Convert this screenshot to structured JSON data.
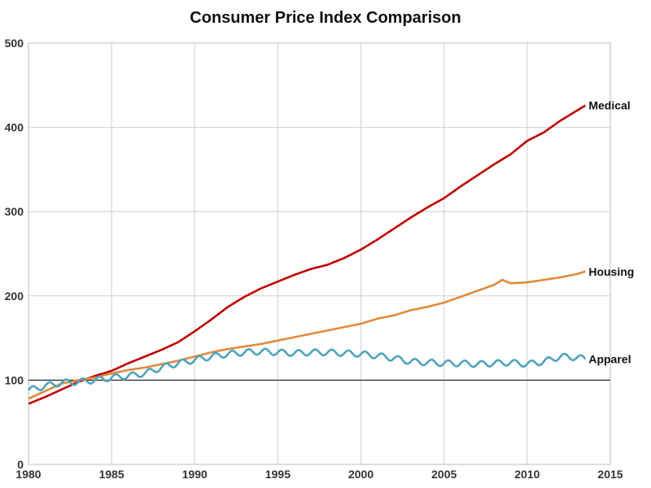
{
  "chart_data": {
    "type": "line",
    "title": "Consumer Price Index Comparison",
    "xlim": [
      1980,
      2015
    ],
    "ylim": [
      0,
      500
    ],
    "xticks": [
      1980,
      1985,
      1990,
      1995,
      2000,
      2005,
      2010,
      2015
    ],
    "yticks": [
      0,
      100,
      200,
      300,
      400,
      500
    ],
    "grid": true,
    "reference_line": 100,
    "series": [
      {
        "name": "Medical",
        "color": "#c00000",
        "x": [
          1980,
          1981,
          1982,
          1983,
          1984,
          1985,
          1986,
          1987,
          1988,
          1989,
          1990,
          1991,
          1992,
          1993,
          1994,
          1995,
          1996,
          1997,
          1998,
          1999,
          2000,
          2001,
          2002,
          2003,
          2004,
          2005,
          2006,
          2007,
          2008,
          2009,
          2010,
          2011,
          2012,
          2013,
          2013.5
        ],
        "y": [
          72,
          80,
          89,
          98,
          105,
          111,
          120,
          128,
          136,
          145,
          158,
          172,
          187,
          199,
          209,
          217,
          225,
          232,
          237,
          245,
          255,
          267,
          280,
          293,
          305,
          316,
          330,
          343,
          356,
          368,
          384,
          394,
          408,
          420,
          426
        ]
      },
      {
        "name": "Housing",
        "color": "#e08a3c",
        "x": [
          1980,
          1981,
          1982,
          1983,
          1984,
          1985,
          1986,
          1987,
          1988,
          1989,
          1990,
          1991,
          1992,
          1993,
          1994,
          1995,
          1996,
          1997,
          1998,
          1999,
          2000,
          2001,
          2002,
          2003,
          2004,
          2005,
          2006,
          2007,
          2008,
          2008.5,
          2009,
          2010,
          2011,
          2012,
          2013,
          2013.5
        ],
        "y": [
          78,
          87,
          96,
          100,
          103,
          108,
          112,
          115,
          119,
          123,
          128,
          133,
          137,
          140,
          143,
          147,
          151,
          155,
          159,
          163,
          167,
          173,
          177,
          183,
          187,
          192,
          199,
          206,
          213,
          219,
          215,
          216,
          219,
          222,
          226,
          229
        ]
      },
      {
        "name": "Apparel",
        "color": "#4fa3bd",
        "x": [
          1980,
          1981,
          1982,
          1983,
          1984,
          1985,
          1986,
          1987,
          1988,
          1989,
          1990,
          1991,
          1992,
          1993,
          1994,
          1995,
          1996,
          1997,
          1998,
          1999,
          2000,
          2001,
          2002,
          2003,
          2004,
          2005,
          2006,
          2007,
          2008,
          2009,
          2010,
          2011,
          2012,
          2013,
          2013.5
        ],
        "y": [
          88,
          93,
          97,
          98,
          100,
          103,
          105,
          108,
          115,
          120,
          124,
          128,
          131,
          133,
          134,
          133,
          132,
          133,
          133,
          132,
          131,
          129,
          126,
          122,
          121,
          120,
          120,
          119,
          120,
          121,
          119,
          122,
          128,
          127,
          125
        ],
        "seasonal_amplitude": 3.5
      }
    ]
  }
}
